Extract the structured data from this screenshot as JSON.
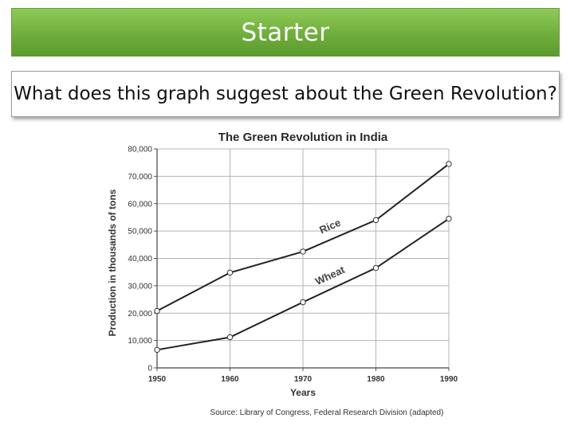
{
  "header": {
    "title": "Starter"
  },
  "question": {
    "text": "What does this graph suggest about the Green Revolution?"
  },
  "chart_data": {
    "type": "line",
    "title": "The Green Revolution in India",
    "xlabel": "Years",
    "ylabel": "Production in thousands of tons",
    "x": [
      1950,
      1960,
      1970,
      1980,
      1990
    ],
    "x_tick_labels": [
      "1950",
      "1960",
      "1970",
      "1980",
      "1990"
    ],
    "ylim": [
      0,
      80000
    ],
    "y_tick_labels": [
      "0",
      "10,000",
      "20,000",
      "30,000",
      "40,000",
      "50,000",
      "60,000",
      "70,000",
      "80,000"
    ],
    "y_ticks": [
      0,
      10000,
      20000,
      30000,
      40000,
      50000,
      60000,
      70000,
      80000
    ],
    "grid": true,
    "series": [
      {
        "name": "Rice",
        "values": [
          20800,
          34800,
          42500,
          54000,
          74500
        ]
      },
      {
        "name": "Wheat",
        "values": [
          6600,
          11200,
          24000,
          36500,
          54500
        ]
      }
    ],
    "source": "Source: Library of Congress, Federal Research Division (adapted)"
  }
}
